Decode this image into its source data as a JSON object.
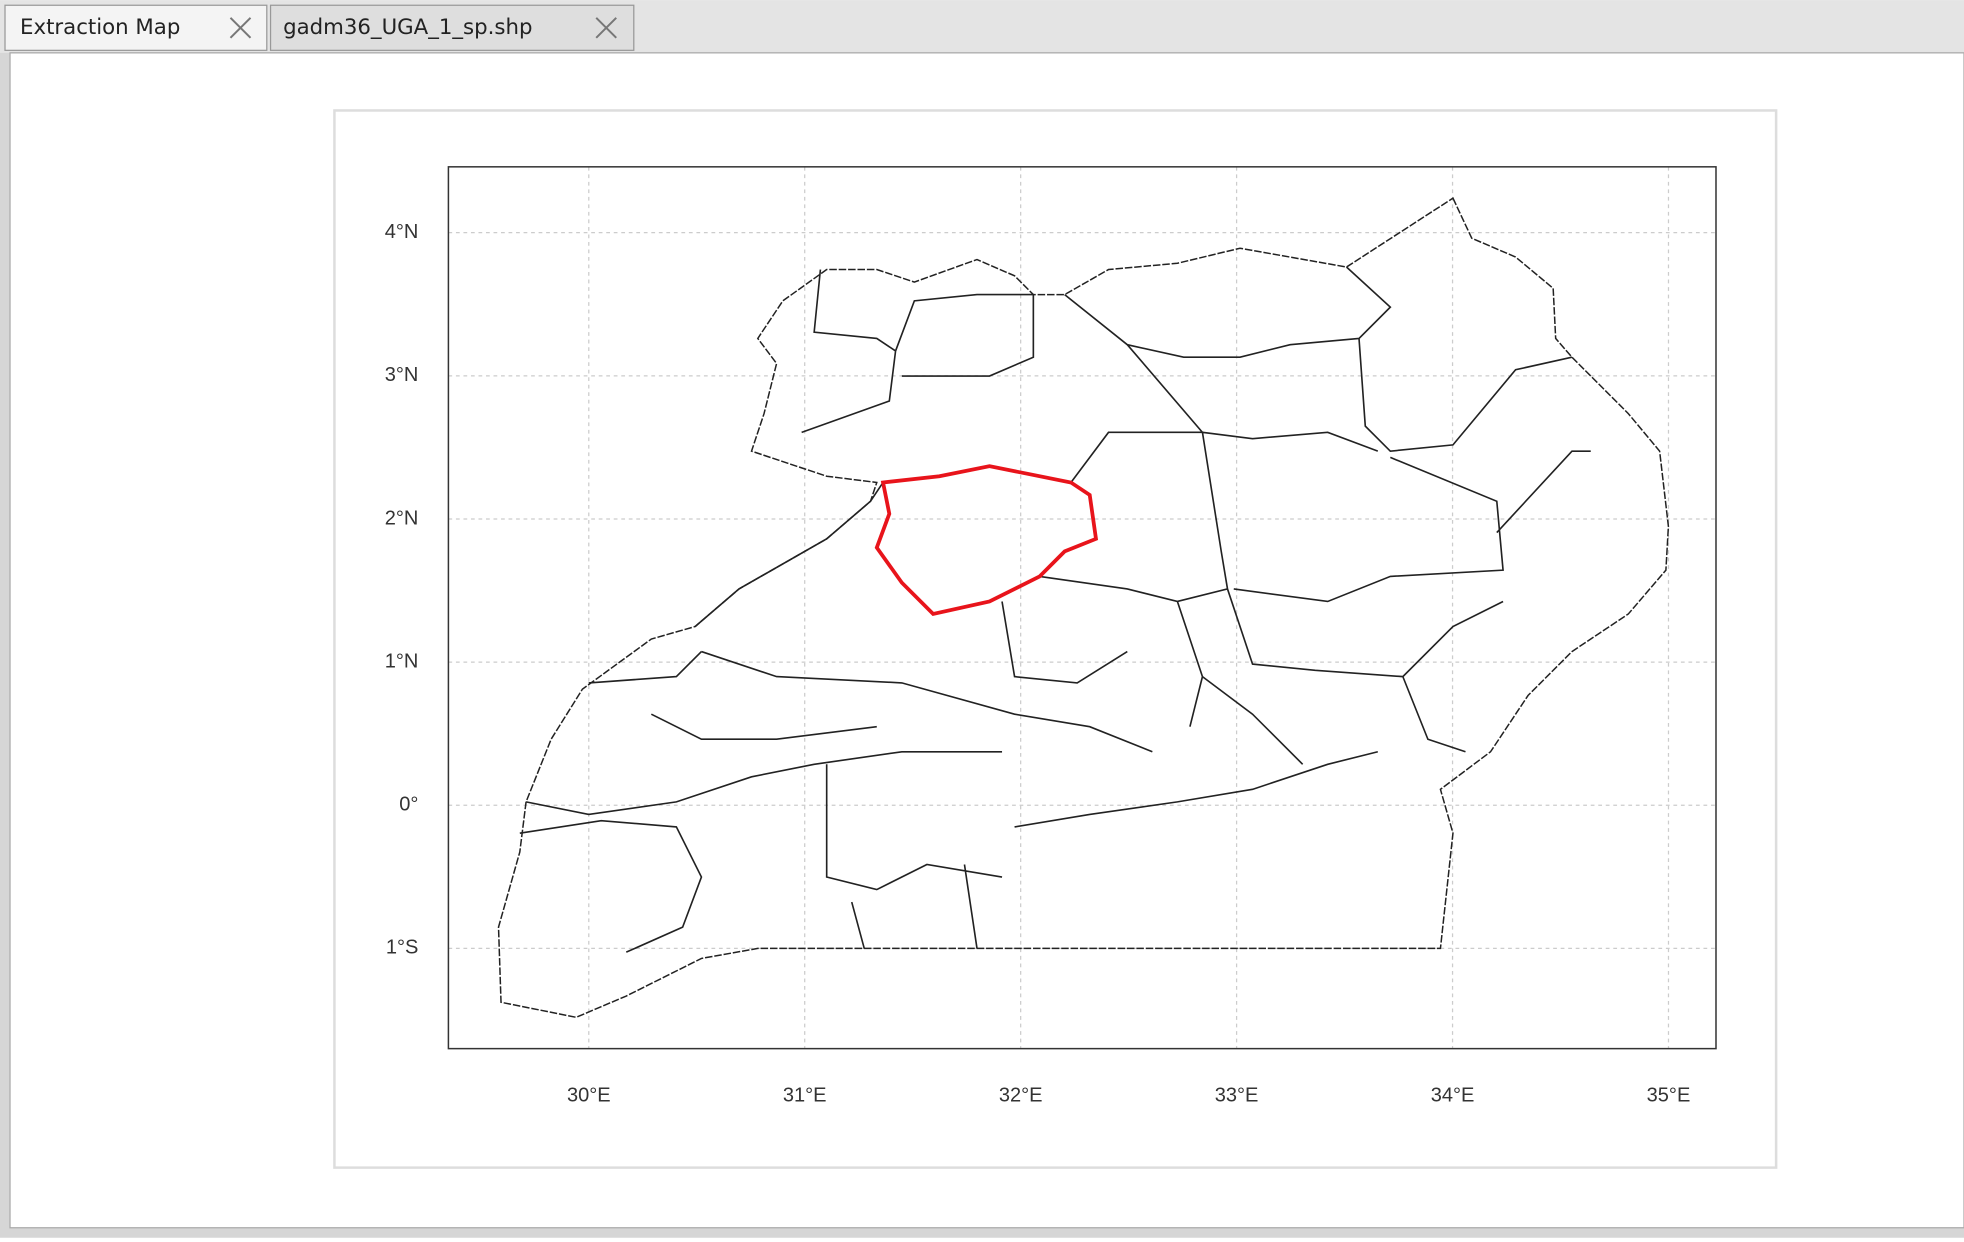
{
  "tabs": [
    "Extraction Map",
    "gadm36_UGA_1_sp.shp"
  ],
  "map": {
    "xlim": [
      29.35,
      35.22
    ],
    "ylim": [
      -1.7,
      4.46
    ],
    "xticks": [
      {
        "value": 30,
        "label": "30°E"
      },
      {
        "value": 31,
        "label": "31°E"
      },
      {
        "value": 32,
        "label": "32°E"
      },
      {
        "value": 33,
        "label": "33°E"
      },
      {
        "value": 34,
        "label": "34°E"
      },
      {
        "value": 35,
        "label": "35°E"
      }
    ],
    "yticks": [
      {
        "value": -1,
        "label": "1°S"
      },
      {
        "value": 0,
        "label": "0°"
      },
      {
        "value": 1,
        "label": "1°N"
      },
      {
        "value": 2,
        "label": "2°N"
      },
      {
        "value": 3,
        "label": "3°N"
      },
      {
        "value": 4,
        "label": "4°N"
      }
    ],
    "grid": true
  }
}
